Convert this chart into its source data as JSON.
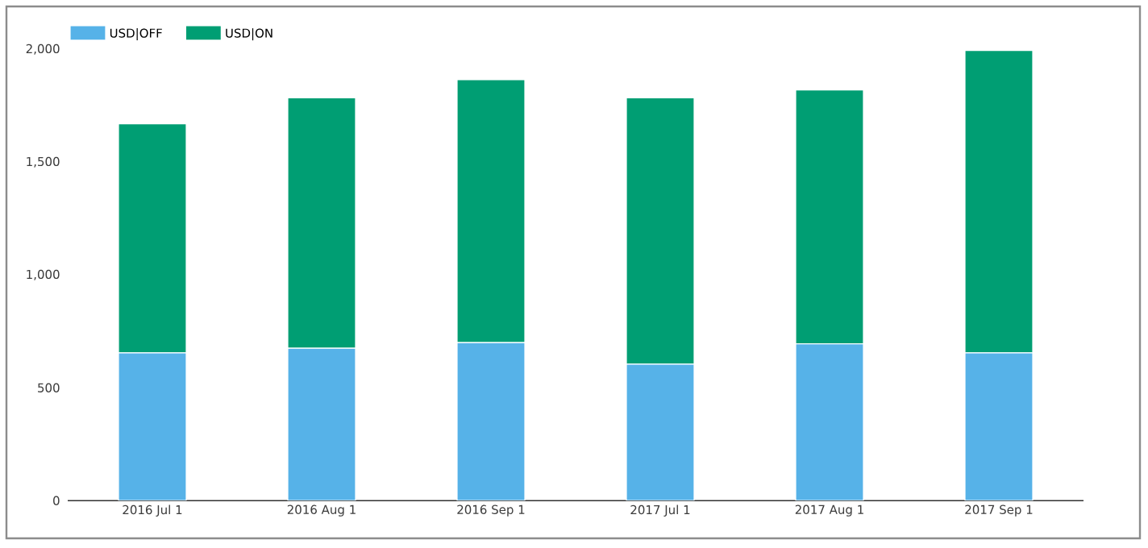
{
  "chart_data": {
    "type": "bar",
    "stacked": true,
    "categories": [
      "2016 Jul 1",
      "2016 Aug 1",
      "2016 Sep 1",
      "2017 Jul 1",
      "2017 Aug 1",
      "2017 Sep 1"
    ],
    "series": [
      {
        "name": "USD|OFF",
        "color": "#56b2e8",
        "values": [
          655,
          675,
          700,
          605,
          695,
          655
        ]
      },
      {
        "name": "USD|ON",
        "color": "#009e73",
        "values": [
          1015,
          1110,
          1165,
          1180,
          1125,
          1340
        ]
      }
    ],
    "ylim": [
      0,
      2000
    ],
    "yticks": [
      0,
      500,
      {
        "value": 1000,
        "label": "1,000"
      },
      {
        "value": 1500,
        "label": "1,500"
      },
      {
        "value": 2000,
        "label": "2,000"
      }
    ],
    "legend": "top left",
    "grid": false
  }
}
